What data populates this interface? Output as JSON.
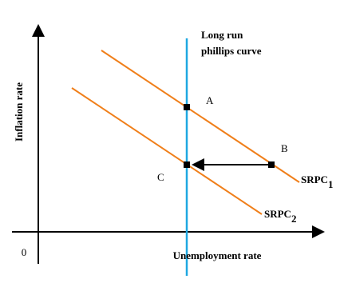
{
  "axes": {
    "y_label": "Inflation rate",
    "x_label": "Unemployment rate",
    "origin": "0"
  },
  "lrpc": {
    "label_lines": [
      "Long run",
      "phillips curve"
    ]
  },
  "points": {
    "a": "A",
    "b": "B",
    "c": "C"
  },
  "curves": {
    "srpc1": {
      "name": "SRPC",
      "sub": "1"
    },
    "srpc2": {
      "name": "SRPC",
      "sub": "2"
    }
  }
}
